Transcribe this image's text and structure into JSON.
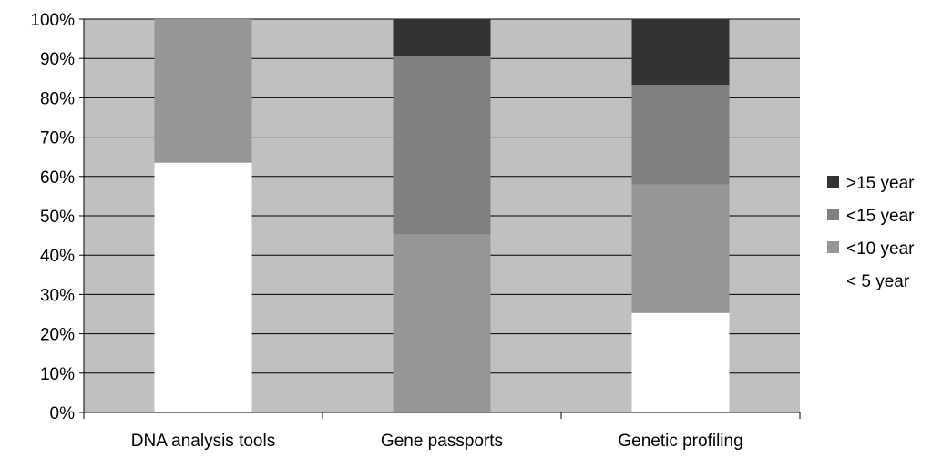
{
  "chart_data": {
    "type": "bar",
    "stacked": true,
    "categories": [
      "DNA analysis tools",
      "Gene passports",
      "Genetic profiling"
    ],
    "series": [
      {
        "name": "< 5 year",
        "color": "#FFFFFF",
        "values": [
          63.5,
          0,
          25.3
        ]
      },
      {
        "name": "<10 year",
        "color": "#969696",
        "values": [
          36.5,
          45.3,
          32.7
        ]
      },
      {
        "name": "<15 year",
        "color": "#808080",
        "values": [
          0,
          45.4,
          25.3
        ]
      },
      {
        "name": ">15 year",
        "color": "#333333",
        "values": [
          0,
          9.3,
          16.7
        ]
      }
    ],
    "ylim": [
      0,
      100
    ],
    "yticks": [
      "0%",
      "10%",
      "20%",
      "30%",
      "40%",
      "50%",
      "60%",
      "70%",
      "80%",
      "90%",
      "100%"
    ],
    "plot_background": "#C0C0C0",
    "grid": true,
    "legend_position": "right",
    "legend_order": [
      ">15 year",
      "<15 year",
      "<10 year",
      "< 5 year"
    ]
  }
}
